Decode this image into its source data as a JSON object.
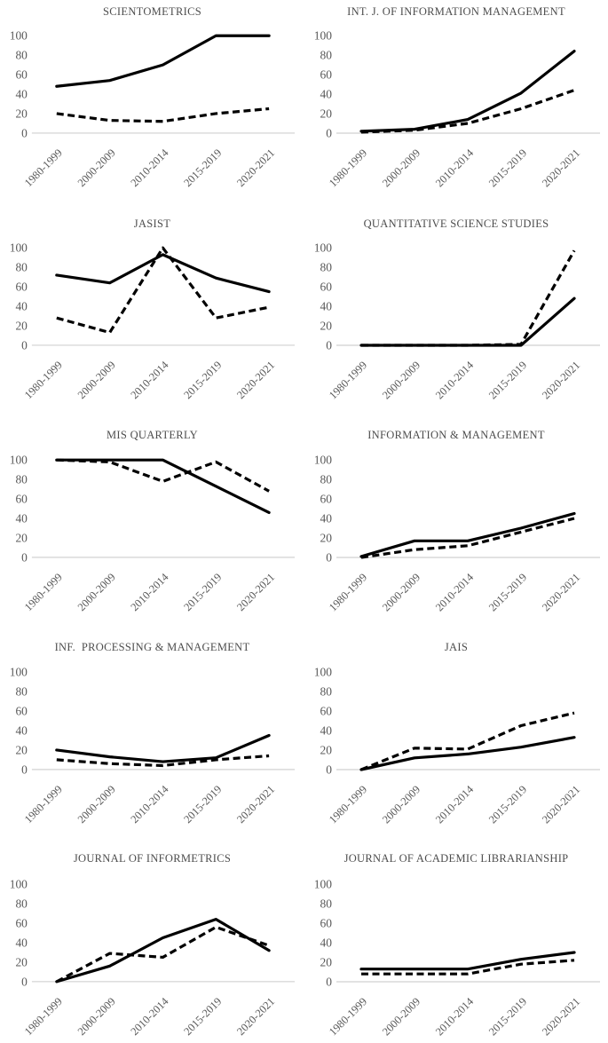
{
  "styles": {
    "background": "#ffffff",
    "line_color": "#000000",
    "title_color": "#4d4d4d",
    "tick_color": "#595959",
    "axis_color": "#d9d9d9"
  },
  "figure": {
    "y_ticks": [
      0,
      20,
      40,
      60,
      80,
      100
    ],
    "ylim": [
      0,
      100
    ],
    "grid": "off",
    "legend": "none",
    "categories": [
      "1980-1999",
      "2000-2009",
      "2010-2014",
      "2015-2019",
      "2020-2021"
    ]
  },
  "chart_data": [
    {
      "type": "line",
      "title": "SCIENTOMETRICS",
      "categories": [
        "1980-1999",
        "2000-2009",
        "2010-2014",
        "2015-2019",
        "2020-2021"
      ],
      "ylim": [
        0,
        100
      ],
      "series": [
        {
          "name": "solid",
          "style": "solid",
          "values": [
            48,
            54,
            70,
            100,
            100
          ]
        },
        {
          "name": "dashed",
          "style": "dashed",
          "values": [
            20,
            13,
            12,
            20,
            25
          ]
        }
      ]
    },
    {
      "type": "line",
      "title": "INT. J. OF INFORMATION MANAGEMENT",
      "categories": [
        "1980-1999",
        "2000-2009",
        "2010-2014",
        "2015-2019",
        "2020-2021"
      ],
      "ylim": [
        0,
        100
      ],
      "series": [
        {
          "name": "solid",
          "style": "solid",
          "values": [
            2,
            4,
            14,
            41,
            84
          ]
        },
        {
          "name": "dashed",
          "style": "dashed",
          "values": [
            1,
            3,
            10,
            25,
            44
          ]
        }
      ]
    },
    {
      "type": "line",
      "title": "JASIST",
      "categories": [
        "1980-1999",
        "2000-2009",
        "2010-2014",
        "2015-2019",
        "2020-2021"
      ],
      "ylim": [
        0,
        100
      ],
      "series": [
        {
          "name": "solid",
          "style": "solid",
          "values": [
            72,
            64,
            93,
            69,
            55
          ]
        },
        {
          "name": "dashed",
          "style": "dashed",
          "values": [
            28,
            13,
            100,
            28,
            39
          ]
        }
      ]
    },
    {
      "type": "line",
      "title": "QUANTITATIVE SCIENCE STUDIES",
      "categories": [
        "1980-1999",
        "2000-2009",
        "2010-2014",
        "2015-2019",
        "2020-2021"
      ],
      "ylim": [
        0,
        100
      ],
      "series": [
        {
          "name": "solid",
          "style": "solid",
          "values": [
            0,
            0,
            0,
            0,
            48
          ]
        },
        {
          "name": "dashed",
          "style": "dashed",
          "values": [
            0,
            0,
            0,
            1,
            97
          ]
        }
      ]
    },
    {
      "type": "line",
      "title": "MIS QUARTERLY",
      "categories": [
        "1980-1999",
        "2000-2009",
        "2010-2014",
        "2015-2019",
        "2020-2021"
      ],
      "ylim": [
        0,
        100
      ],
      "series": [
        {
          "name": "solid",
          "style": "solid",
          "values": [
            100,
            100,
            100,
            73,
            46
          ]
        },
        {
          "name": "dashed",
          "style": "dashed",
          "values": [
            100,
            98,
            78,
            98,
            68
          ]
        }
      ]
    },
    {
      "type": "line",
      "title": "INFORMATION & MANAGEMENT",
      "categories": [
        "1980-1999",
        "2000-2009",
        "2010-2014",
        "2015-2019",
        "2020-2021"
      ],
      "ylim": [
        0,
        100
      ],
      "series": [
        {
          "name": "solid",
          "style": "solid",
          "values": [
            1,
            17,
            17,
            30,
            45
          ]
        },
        {
          "name": "dashed",
          "style": "dashed",
          "values": [
            0,
            8,
            12,
            26,
            40
          ]
        }
      ]
    },
    {
      "type": "line",
      "title": "INF.  PROCESSING & MANAGEMENT",
      "categories": [
        "1980-1999",
        "2000-2009",
        "2010-2014",
        "2015-2019",
        "2020-2021"
      ],
      "ylim": [
        0,
        100
      ],
      "series": [
        {
          "name": "solid",
          "style": "solid",
          "values": [
            20,
            13,
            8,
            12,
            35
          ]
        },
        {
          "name": "dashed",
          "style": "dashed",
          "values": [
            10,
            6,
            4,
            10,
            14
          ]
        }
      ]
    },
    {
      "type": "line",
      "title": "JAIS",
      "categories": [
        "1980-1999",
        "2000-2009",
        "2010-2014",
        "2015-2019",
        "2020-2021"
      ],
      "ylim": [
        0,
        100
      ],
      "series": [
        {
          "name": "solid",
          "style": "solid",
          "values": [
            0,
            12,
            16,
            23,
            33
          ]
        },
        {
          "name": "dashed",
          "style": "dashed",
          "values": [
            0,
            22,
            21,
            45,
            58
          ]
        }
      ]
    },
    {
      "type": "line",
      "title": "JOURNAL OF INFORMETRICS",
      "categories": [
        "1980-1999",
        "2000-2009",
        "2010-2014",
        "2015-2019",
        "2020-2021"
      ],
      "ylim": [
        0,
        100
      ],
      "series": [
        {
          "name": "solid",
          "style": "solid",
          "values": [
            0,
            16,
            45,
            64,
            32
          ]
        },
        {
          "name": "dashed",
          "style": "dashed",
          "values": [
            0,
            29,
            25,
            56,
            37
          ]
        }
      ]
    },
    {
      "type": "line",
      "title": "JOURNAL OF ACADEMIC LIBRARIANSHIP",
      "categories": [
        "1980-1999",
        "2000-2009",
        "2010-2014",
        "2015-2019",
        "2020-2021"
      ],
      "ylim": [
        0,
        100
      ],
      "series": [
        {
          "name": "solid",
          "style": "solid",
          "values": [
            13,
            13,
            13,
            23,
            30
          ]
        },
        {
          "name": "dashed",
          "style": "dashed",
          "values": [
            8,
            8,
            8,
            18,
            22
          ]
        }
      ]
    }
  ]
}
